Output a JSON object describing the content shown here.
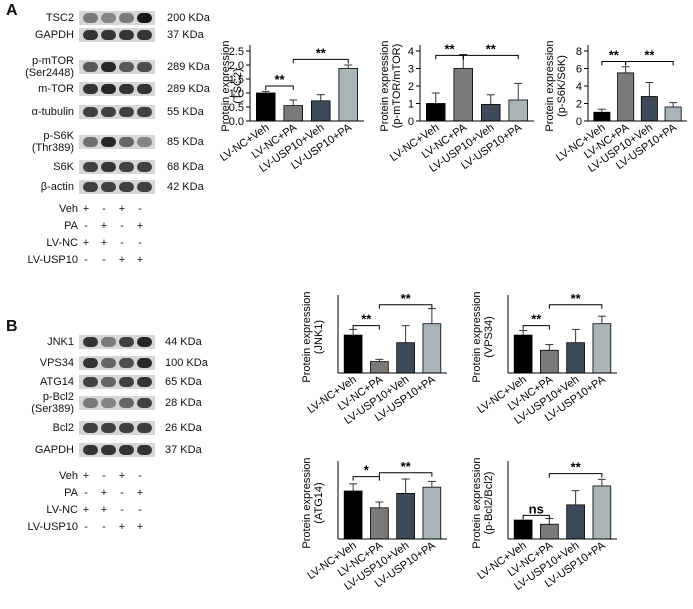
{
  "panel_labels": [
    "A",
    "B"
  ],
  "panel_a": {
    "blots": [
      {
        "label": "TSC2",
        "kda": "200 KDa",
        "intensity": [
          0.55,
          0.5,
          0.55,
          0.95
        ]
      },
      {
        "label": "GAPDH",
        "kda": "37 KDa",
        "intensity": [
          0.85,
          0.85,
          0.85,
          0.85
        ]
      },
      {
        "label": "p-mTOR\n(Ser2448)",
        "kda": "289 KDa",
        "intensity": [
          0.7,
          0.9,
          0.7,
          0.75
        ]
      },
      {
        "label": "m-TOR",
        "kda": "289 KDa",
        "intensity": [
          0.85,
          0.9,
          0.85,
          0.85
        ]
      },
      {
        "label": "α-tubulin",
        "kda": "55 KDa",
        "intensity": [
          0.8,
          0.8,
          0.8,
          0.8
        ]
      },
      {
        "label": "p-S6K\n(Thr389)",
        "kda": "85 KDa",
        "intensity": [
          0.6,
          0.9,
          0.65,
          0.5
        ]
      },
      {
        "label": "S6K",
        "kda": "68 KDa",
        "intensity": [
          0.8,
          0.85,
          0.8,
          0.8
        ]
      },
      {
        "label": "β-actin",
        "kda": "42 KDa",
        "intensity": [
          0.8,
          0.8,
          0.8,
          0.8
        ]
      }
    ],
    "treatments": [
      {
        "label": "Veh",
        "signs": [
          "+",
          "-",
          "+",
          "-"
        ]
      },
      {
        "label": "PA",
        "signs": [
          "-",
          "+",
          "-",
          "+"
        ]
      },
      {
        "label": "LV-NC",
        "signs": [
          "+",
          "+",
          "-",
          "-"
        ]
      },
      {
        "label": "LV-USP10",
        "signs": [
          "-",
          "-",
          "+",
          "+"
        ]
      }
    ]
  },
  "panel_b": {
    "blots": [
      {
        "label": "JNK1",
        "kda": "44 KDa",
        "intensity": [
          0.85,
          0.55,
          0.8,
          0.9
        ]
      },
      {
        "label": "VPS34",
        "kda": "100 KDa",
        "intensity": [
          0.85,
          0.65,
          0.75,
          0.9
        ]
      },
      {
        "label": "ATG14",
        "kda": "65 KDa",
        "intensity": [
          0.8,
          0.65,
          0.8,
          0.85
        ]
      },
      {
        "label": "p-Bcl2\n(Ser389)",
        "kda": "28 KDa",
        "intensity": [
          0.55,
          0.5,
          0.65,
          0.8
        ]
      },
      {
        "label": "Bcl2",
        "kda": "26 KDa",
        "intensity": [
          0.8,
          0.8,
          0.8,
          0.8
        ]
      },
      {
        "label": "GAPDH",
        "kda": "37 KDa",
        "intensity": [
          0.85,
          0.85,
          0.85,
          0.85
        ]
      }
    ],
    "treatments": [
      {
        "label": "Veh",
        "signs": [
          "+",
          "-",
          "+",
          "-"
        ]
      },
      {
        "label": "PA",
        "signs": [
          "-",
          "+",
          "-",
          "+"
        ]
      },
      {
        "label": "LV-NC",
        "signs": [
          "+",
          "+",
          "-",
          "-"
        ]
      },
      {
        "label": "LV-USP10",
        "signs": [
          "-",
          "-",
          "+",
          "+"
        ]
      }
    ]
  },
  "chart_data": [
    {
      "type": "bar",
      "ylabel": "Protein expression\n(TSC2)",
      "categories": [
        "LV-NC+Veh",
        "LV-NC+PA",
        "LV-USP10+Veh",
        "LV-USP10+PA"
      ],
      "values": [
        1.0,
        0.55,
        0.72,
        1.88
      ],
      "errors": [
        0.06,
        0.2,
        0.22,
        0.12
      ],
      "ylim": [
        0,
        2.5
      ],
      "yticks": [
        "0.0",
        "0.5",
        "1.0",
        "1.5",
        "2.0",
        "2.5"
      ],
      "brackets": [
        {
          "from": 0,
          "to": 1,
          "label": "**",
          "y": 1.25
        },
        {
          "from": 1,
          "to": 3,
          "label": "**",
          "y": 2.2
        }
      ]
    },
    {
      "type": "bar",
      "ylabel": "Protein expression\n(p-mTOR/mTOR)",
      "categories": [
        "LV-NC+Veh",
        "LV-NC+PA",
        "LV-USP10+Veh",
        "LV-USP10+PA"
      ],
      "values": [
        1.0,
        3.0,
        0.95,
        1.2
      ],
      "errors": [
        0.6,
        0.8,
        0.55,
        0.95
      ],
      "ylim": [
        0,
        4
      ],
      "yticks": [
        "0",
        "1",
        "2",
        "3",
        "4"
      ],
      "brackets": [
        {
          "from": 0,
          "to": 1,
          "label": "**",
          "y": 3.75
        },
        {
          "from": 1,
          "to": 3,
          "label": "**",
          "y": 3.75
        }
      ]
    },
    {
      "type": "bar",
      "ylabel": "Protein expression\n(p-S6K/S6K)",
      "categories": [
        "LV-NC+Veh",
        "LV-NC+PA",
        "LV-USP10+Veh",
        "LV-USP10+PA"
      ],
      "values": [
        1.0,
        5.5,
        2.8,
        1.6
      ],
      "errors": [
        0.35,
        0.7,
        1.6,
        0.5
      ],
      "ylim": [
        0,
        8
      ],
      "yticks": [
        "0",
        "2",
        "4",
        "6",
        "8"
      ],
      "brackets": [
        {
          "from": 0,
          "to": 1,
          "label": "**",
          "y": 6.8
        },
        {
          "from": 1,
          "to": 3,
          "label": "**",
          "y": 6.8
        }
      ]
    },
    {
      "type": "bar",
      "ylabel": "Protein expression\n(JNK1)",
      "categories": [
        "LV-NC+Veh",
        "LV-NC+PA",
        "LV-USP10+Veh",
        "LV-USP10+PA"
      ],
      "values": [
        1.0,
        0.3,
        0.8,
        1.3
      ],
      "errors": [
        0.15,
        0.06,
        0.45,
        0.4
      ],
      "ylim": [
        0,
        1.9
      ],
      "yticks": [],
      "brackets": [
        {
          "from": 0,
          "to": 1,
          "label": "**",
          "y": 1.25
        },
        {
          "from": 1,
          "to": 3,
          "label": "**",
          "y": 1.8
        }
      ]
    },
    {
      "type": "bar",
      "ylabel": "Protein expression\n(VPS34)",
      "categories": [
        "LV-NC+Veh",
        "LV-NC+PA",
        "LV-USP10+Veh",
        "LV-USP10+PA"
      ],
      "values": [
        1.0,
        0.6,
        0.8,
        1.3
      ],
      "errors": [
        0.12,
        0.15,
        0.35,
        0.2
      ],
      "ylim": [
        0,
        1.9
      ],
      "yticks": [],
      "brackets": [
        {
          "from": 0,
          "to": 1,
          "label": "**",
          "y": 1.25
        },
        {
          "from": 1,
          "to": 3,
          "label": "**",
          "y": 1.8
        }
      ]
    },
    {
      "type": "bar",
      "ylabel": "Protein expression\n(ATG14)",
      "categories": [
        "LV-NC+Veh",
        "LV-NC+PA",
        "LV-USP10+Veh",
        "LV-USP10+PA"
      ],
      "values": [
        1.0,
        0.65,
        0.95,
        1.08
      ],
      "errors": [
        0.15,
        0.12,
        0.3,
        0.12
      ],
      "ylim": [
        0,
        1.5
      ],
      "yticks": [],
      "brackets": [
        {
          "from": 0,
          "to": 1,
          "label": "*",
          "y": 1.3
        },
        {
          "from": 1,
          "to": 3,
          "label": "**",
          "y": 1.38
        }
      ]
    },
    {
      "type": "bar",
      "ylabel": "Protein expression\n(p-Bcl2/Bcl2)",
      "categories": [
        "LV-NC+Veh",
        "LV-NC+PA",
        "LV-USP10+Veh",
        "LV-USP10+PA"
      ],
      "values": [
        1.0,
        0.78,
        1.8,
        2.8
      ],
      "errors": [
        0.0,
        0.3,
        0.75,
        0.35
      ],
      "ylim": [
        0,
        3.8
      ],
      "yticks": [],
      "brackets": [
        {
          "from": 0,
          "to": 1,
          "label": "ns",
          "y": 1.25
        },
        {
          "from": 1,
          "to": 3,
          "label": "**",
          "y": 3.45
        }
      ]
    }
  ],
  "colors": {
    "bar_fills": [
      "#000000",
      "#7a7a7a",
      "#3e4a5a",
      "#a9b4b6"
    ]
  }
}
